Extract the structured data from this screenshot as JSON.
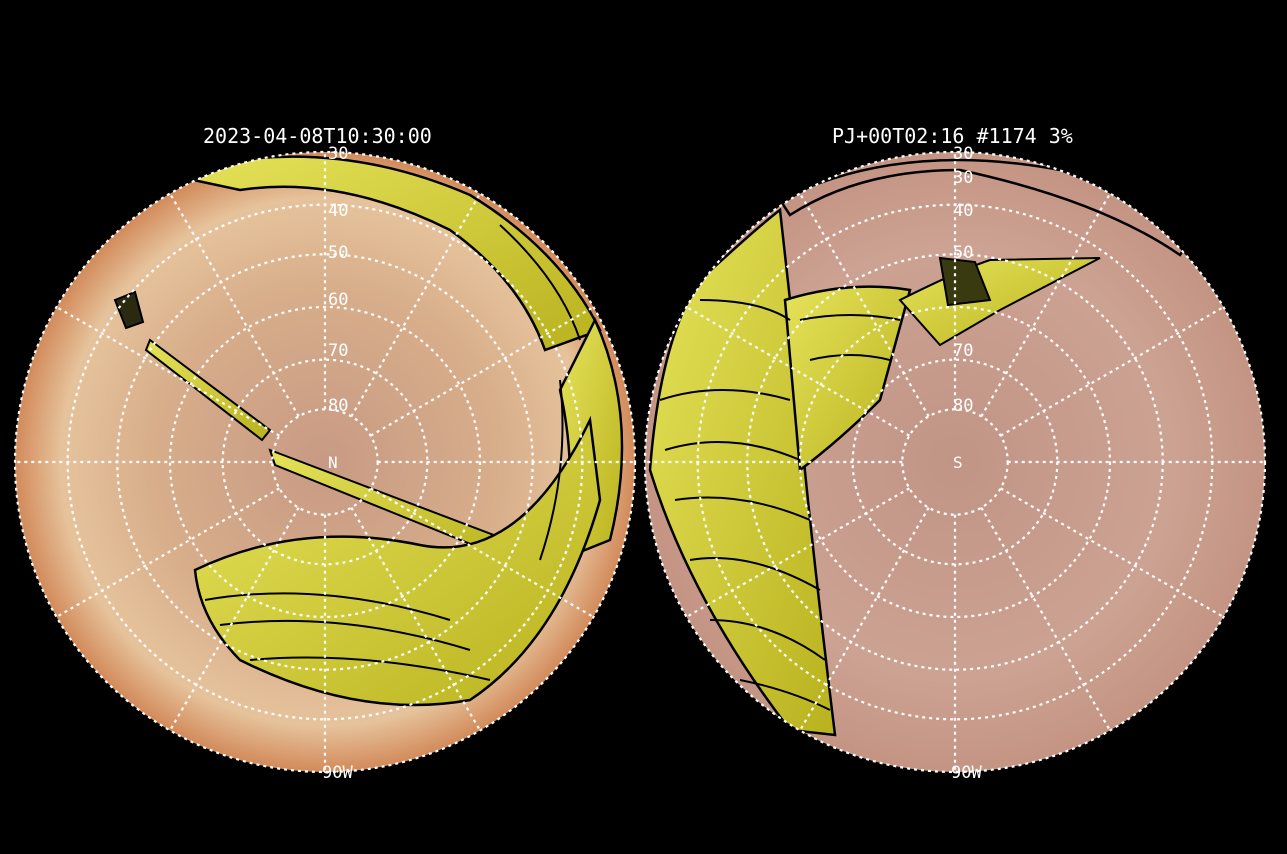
{
  "panels": [
    {
      "title": "2023-04-08T10:30:00",
      "pole_label": "N",
      "lat_labels": [
        "30",
        "40",
        "50",
        "60",
        "70",
        "80"
      ],
      "lon_label": "90W",
      "colors": {
        "disk_light": "#e8c29a",
        "disk_dark": "#c8895e",
        "footprint_fill": "#d8d33a",
        "footprint_edge": "#000000",
        "grid": "#ffffff"
      }
    },
    {
      "title": "PJ+00T02:16 #1174 3%",
      "pole_label": "S",
      "lat_labels": [
        "30",
        "30",
        "40",
        "50",
        "70",
        "80"
      ],
      "lon_label": "90W",
      "colors": {
        "disk_light": "#cfa797",
        "disk_dark": "#b88a7a",
        "footprint_fill": "#d8d33a",
        "footprint_edge": "#000000",
        "grid": "#ffffff"
      }
    }
  ]
}
